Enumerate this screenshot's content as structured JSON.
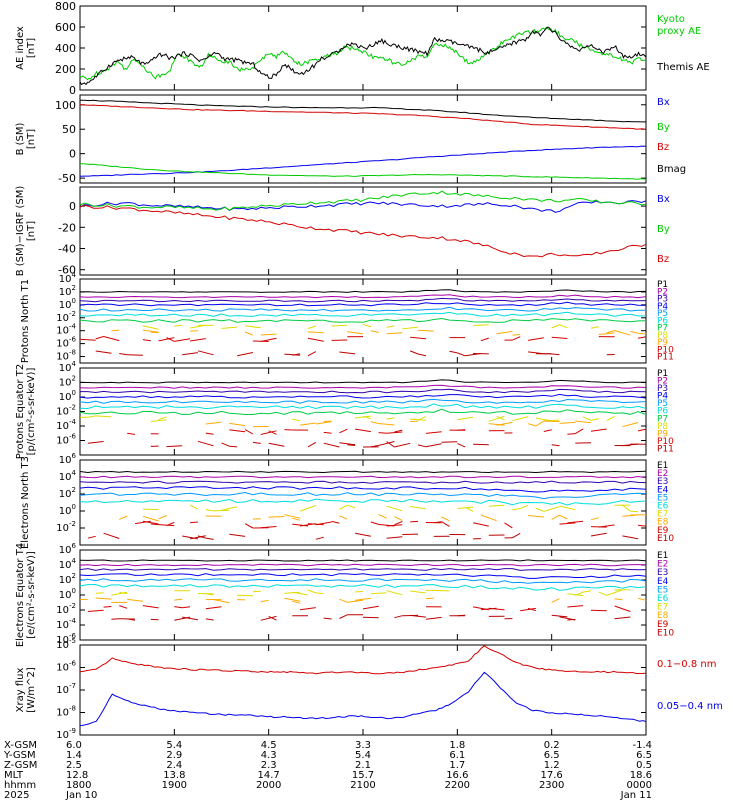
{
  "colors": {
    "black": "#000000",
    "green": "#00cc00",
    "blue": "#0000ee",
    "red": "#d40000",
    "purple": "#aa00aa",
    "navy": "#3300aa",
    "azure": "#0099ff",
    "cyan": "#00dddd",
    "lime": "#00cc44",
    "yellow": "#dddd00",
    "orange": "#ffaa00",
    "darkred": "#bb0000"
  },
  "chart_data": [
    {
      "type": "line",
      "ylabel": "AE index [nT]",
      "ylim": [
        0,
        800
      ],
      "yticks": [
        "0",
        "200",
        "400",
        "600",
        "800"
      ],
      "legend": [
        {
          "name": "Kyoto proxy AE",
          "color": "green"
        },
        {
          "name": "Themis AE",
          "color": "black"
        }
      ],
      "series": [
        {
          "name": "Kyoto proxy AE",
          "color": "green",
          "values": [
            130,
            100,
            150,
            180,
            220,
            270,
            200,
            280,
            260,
            180,
            120,
            150,
            200,
            350,
            310,
            250,
            220,
            330,
            300,
            280,
            260,
            200,
            190,
            220,
            280,
            360,
            320,
            360,
            310,
            250,
            260,
            280,
            300,
            330,
            350,
            400,
            400,
            380,
            350,
            310,
            300,
            280,
            250,
            230,
            300,
            320,
            310,
            450,
            430,
            400,
            350,
            280,
            260,
            300,
            350,
            400,
            450,
            500,
            520,
            540,
            560,
            560,
            600,
            560,
            500,
            480,
            440,
            400,
            380,
            360,
            340,
            320,
            280,
            260,
            300,
            280
          ]
        },
        {
          "name": "Themis AE",
          "color": "black",
          "values": [
            60,
            70,
            120,
            180,
            240,
            280,
            300,
            310,
            260,
            240,
            320,
            340,
            300,
            330,
            350,
            320,
            280,
            310,
            360,
            300,
            290,
            280,
            260,
            240,
            160,
            120,
            140,
            250,
            200,
            150,
            180,
            230,
            300,
            320,
            360,
            420,
            440,
            420,
            400,
            440,
            470,
            430,
            420,
            400,
            380,
            360,
            350,
            480,
            470,
            460,
            440,
            420,
            400,
            380,
            350,
            380,
            400,
            440,
            460,
            480,
            560,
            520,
            590,
            540,
            460,
            420,
            380,
            400,
            420,
            360,
            380,
            400,
            320,
            300,
            340,
            310
          ]
        }
      ]
    },
    {
      "type": "line",
      "ylabel": "B (SM) [nT]",
      "ylim": [
        -60,
        120
      ],
      "yticks": [
        "-50",
        "0",
        "50",
        "100"
      ],
      "legend": [
        {
          "name": "Bx",
          "color": "blue"
        },
        {
          "name": "By",
          "color": "green"
        },
        {
          "name": "Bz",
          "color": "red"
        },
        {
          "name": "Bmag",
          "color": "black"
        }
      ],
      "series": [
        {
          "name": "Bx",
          "color": "blue",
          "values": [
            -46,
            -45,
            -43,
            -41,
            -40,
            -38,
            -36,
            -33,
            -30,
            -27,
            -24,
            -21,
            -18,
            -15,
            -12,
            -8,
            -5,
            -2,
            1,
            4,
            7,
            9,
            11,
            13,
            14,
            15
          ]
        },
        {
          "name": "By",
          "color": "green",
          "values": [
            -20,
            -24,
            -28,
            -32,
            -35,
            -37,
            -39,
            -41,
            -43,
            -44,
            -45,
            -46,
            -46,
            -45,
            -44,
            -43,
            -43,
            -44,
            -45,
            -46,
            -47,
            -48,
            -49,
            -50,
            -51,
            -52
          ]
        },
        {
          "name": "Bz",
          "color": "red",
          "values": [
            100,
            98,
            96,
            94,
            92,
            90,
            89,
            88,
            87,
            86,
            85,
            84,
            83,
            82,
            80,
            78,
            75,
            72,
            68,
            64,
            60,
            58,
            56,
            54,
            52,
            50
          ]
        },
        {
          "name": "Bmag",
          "color": "black",
          "values": [
            110,
            108,
            106,
            104,
            102,
            100,
            98,
            97,
            96,
            95,
            94,
            94,
            94,
            94,
            92,
            90,
            87,
            84,
            80,
            77,
            74,
            72,
            70,
            68,
            66,
            65
          ]
        }
      ]
    },
    {
      "type": "line",
      "ylabel": "B (SM)−IGRF (SM) [nT]",
      "ylim": [
        -65,
        18
      ],
      "yticks": [
        "-60",
        "-40",
        "-20",
        "0"
      ],
      "legend": [
        {
          "name": "Bx",
          "color": "blue"
        },
        {
          "name": "By",
          "color": "green"
        },
        {
          "name": "Bz",
          "color": "red"
        }
      ],
      "series": [
        {
          "name": "Bx",
          "color": "blue",
          "values": [
            0,
            2,
            3,
            1,
            0,
            -1,
            -2,
            -3,
            -2,
            -1,
            0,
            1,
            2,
            3,
            2,
            1,
            0,
            1,
            2,
            1,
            -3,
            -5,
            2,
            4,
            3,
            5
          ]
        },
        {
          "name": "By",
          "color": "green",
          "values": [
            2,
            1,
            0,
            -1,
            -1,
            -2,
            -3,
            -2,
            0,
            1,
            3,
            4,
            5,
            7,
            10,
            12,
            13,
            11,
            9,
            8,
            6,
            5,
            6,
            4,
            3,
            2
          ]
        },
        {
          "name": "Bz",
          "color": "red",
          "values": [
            0,
            -1,
            -2,
            -4,
            -6,
            -8,
            -10,
            -12,
            -14,
            -17,
            -20,
            -22,
            -24,
            -26,
            -28,
            -29,
            -30,
            -33,
            -38,
            -44,
            -48,
            -45,
            -48,
            -44,
            -40,
            -36
          ]
        }
      ]
    },
    {
      "type": "line",
      "ylabel": "Protons North T1",
      "log": true,
      "ylim": [
        -9,
        4
      ],
      "yticks": [
        {
          "base": "10",
          "exp": "4"
        },
        {
          "base": "10",
          "exp": "2"
        },
        {
          "base": "10",
          "exp": "0"
        },
        {
          "base": "10",
          "exp": "-2"
        },
        {
          "base": "10",
          "exp": "-4"
        },
        {
          "base": "10",
          "exp": "-6"
        },
        {
          "base": "10",
          "exp": "-8"
        }
      ],
      "channels": [
        "P1",
        "P2",
        "P3",
        "P4",
        "P5",
        "P6",
        "P7",
        "P8",
        "P9",
        "P10",
        "P11"
      ],
      "levels": [
        2.0,
        1.2,
        0.6,
        0.0,
        -0.8,
        -1.6,
        -2.5,
        -3.4,
        -4.3,
        -5.3,
        -7.5
      ],
      "colorkeys": [
        "black",
        "purple",
        "navy",
        "blue",
        "azure",
        "cyan",
        "lime",
        "yellow",
        "orange",
        "red",
        "darkred"
      ]
    },
    {
      "type": "line",
      "ylabel": "Protons Equator T2 [p/(cm²-s-sr-keV)]",
      "log": true,
      "ylim": [
        -8,
        4
      ],
      "yticks": [
        {
          "base": "10",
          "exp": "4"
        },
        {
          "base": "10",
          "exp": "2"
        },
        {
          "base": "10",
          "exp": "0"
        },
        {
          "base": "10",
          "exp": "-2"
        },
        {
          "base": "10",
          "exp": "-4"
        },
        {
          "base": "10",
          "exp": "-6"
        }
      ],
      "channels": [
        "P1",
        "P2",
        "P3",
        "P4",
        "P5",
        "P6",
        "P7",
        "P8",
        "P9",
        "P10",
        "P11"
      ],
      "levels": [
        2.0,
        1.3,
        0.7,
        0.0,
        -0.7,
        -1.4,
        -2.2,
        -3.0,
        -3.7,
        -4.8,
        -6.5
      ],
      "colorkeys": [
        "black",
        "purple",
        "navy",
        "blue",
        "azure",
        "cyan",
        "lime",
        "yellow",
        "orange",
        "red",
        "darkred"
      ]
    },
    {
      "type": "line",
      "ylabel": "Electrons North T3",
      "log": true,
      "ylim": [
        -4,
        6
      ],
      "yticks": [
        {
          "base": "10",
          "exp": "6"
        },
        {
          "base": "10",
          "exp": "4"
        },
        {
          "base": "10",
          "exp": "2"
        },
        {
          "base": "10",
          "exp": "0"
        },
        {
          "base": "10",
          "exp": "-2"
        }
      ],
      "channels": [
        "E1",
        "E2",
        "E3",
        "E4",
        "E5",
        "E6",
        "E7",
        "E8",
        "E9",
        "E10"
      ],
      "levels": [
        4.6,
        4.0,
        3.4,
        2.7,
        2.0,
        1.2,
        0.3,
        -0.8,
        -1.6,
        -3.0
      ],
      "colorkeys": [
        "black",
        "purple",
        "navy",
        "blue",
        "azure",
        "cyan",
        "yellow",
        "orange",
        "red",
        "darkred"
      ]
    },
    {
      "type": "line",
      "ylabel": "Electrons Equator T4 [e/(cm²-s-sr-keV)]",
      "log": true,
      "ylim": [
        -6,
        6
      ],
      "yticks": [
        {
          "base": "10",
          "exp": "6"
        },
        {
          "base": "10",
          "exp": "4"
        },
        {
          "base": "10",
          "exp": "2"
        },
        {
          "base": "10",
          "exp": "0"
        },
        {
          "base": "10",
          "exp": "-2"
        },
        {
          "base": "10",
          "exp": "-4"
        },
        {
          "base": "10",
          "exp": "-6"
        }
      ],
      "channels": [
        "E1",
        "E2",
        "E3",
        "E4",
        "E5",
        "E6",
        "E7",
        "E8",
        "E9",
        "E10"
      ],
      "levels": [
        4.6,
        4.0,
        3.4,
        2.7,
        2.0,
        1.2,
        0.3,
        -0.8,
        -1.8,
        -3.0
      ],
      "colorkeys": [
        "black",
        "purple",
        "navy",
        "blue",
        "azure",
        "cyan",
        "yellow",
        "orange",
        "red",
        "darkred"
      ]
    },
    {
      "type": "line",
      "ylabel": "Xray flux [W/m^2]",
      "log": true,
      "ylim": [
        -9,
        -5
      ],
      "yticks": [
        {
          "base": "10",
          "exp": "-5"
        },
        {
          "base": "10",
          "exp": "-6"
        },
        {
          "base": "10",
          "exp": "-7"
        },
        {
          "base": "10",
          "exp": "-8"
        },
        {
          "base": "10",
          "exp": "-9"
        }
      ],
      "legend": [
        {
          "name": "0.1−0.8 nm",
          "color": "red"
        },
        {
          "name": "0.05−0.4 nm",
          "color": "blue"
        }
      ],
      "series": [
        {
          "name": "0.1−0.8 nm",
          "color": "red",
          "values": [
            -6.2,
            -6.1,
            -5.6,
            -5.8,
            -5.9,
            -6.0,
            -6.05,
            -6.1,
            -6.1,
            -6.15,
            -6.15,
            -6.2,
            -6.2,
            -6.2,
            -6.25,
            -6.25,
            -6.2,
            -6.2,
            -6.25,
            -6.25,
            -6.2,
            -6.1,
            -6.0,
            -5.9,
            -5.7,
            -5.05,
            -5.4,
            -5.8,
            -6.0,
            -6.1,
            -6.15,
            -6.2,
            -6.2,
            -6.2,
            -6.25,
            -6.25
          ]
        },
        {
          "name": "0.05−0.4 nm",
          "color": "blue",
          "values": [
            -8.6,
            -8.4,
            -7.2,
            -7.5,
            -7.7,
            -7.85,
            -7.95,
            -8.0,
            -8.05,
            -8.1,
            -8.1,
            -8.15,
            -8.2,
            -8.2,
            -8.25,
            -8.25,
            -8.2,
            -8.15,
            -8.2,
            -8.25,
            -8.2,
            -8.05,
            -7.9,
            -7.6,
            -7.1,
            -6.2,
            -6.9,
            -7.6,
            -7.9,
            -8.0,
            -8.05,
            -8.1,
            -8.15,
            -8.2,
            -8.3,
            -8.4
          ]
        }
      ]
    }
  ],
  "xaxis": {
    "row_labels": [
      "X-GSM",
      "Y-GSM",
      "Z-GSM",
      "MLT",
      "hhmm",
      "2025"
    ],
    "columns": [
      {
        "values": [
          "6.0",
          "1.4",
          "2.5",
          "12.8",
          "1800",
          "Jan 10"
        ]
      },
      {
        "values": [
          "5.4",
          "2.9",
          "2.4",
          "13.8",
          "1900",
          ""
        ]
      },
      {
        "values": [
          "4.5",
          "4.3",
          "2.3",
          "14.7",
          "2000",
          ""
        ]
      },
      {
        "values": [
          "3.3",
          "5.4",
          "2.1",
          "15.7",
          "2100",
          ""
        ]
      },
      {
        "values": [
          "1.8",
          "6.1",
          "1.7",
          "16.6",
          "2200",
          ""
        ]
      },
      {
        "values": [
          "0.2",
          "6.5",
          "1.2",
          "17.6",
          "2300",
          ""
        ]
      },
      {
        "values": [
          "-1.4",
          "6.5",
          "0.5",
          "18.6",
          "0000",
          "Jan 11"
        ]
      }
    ]
  }
}
